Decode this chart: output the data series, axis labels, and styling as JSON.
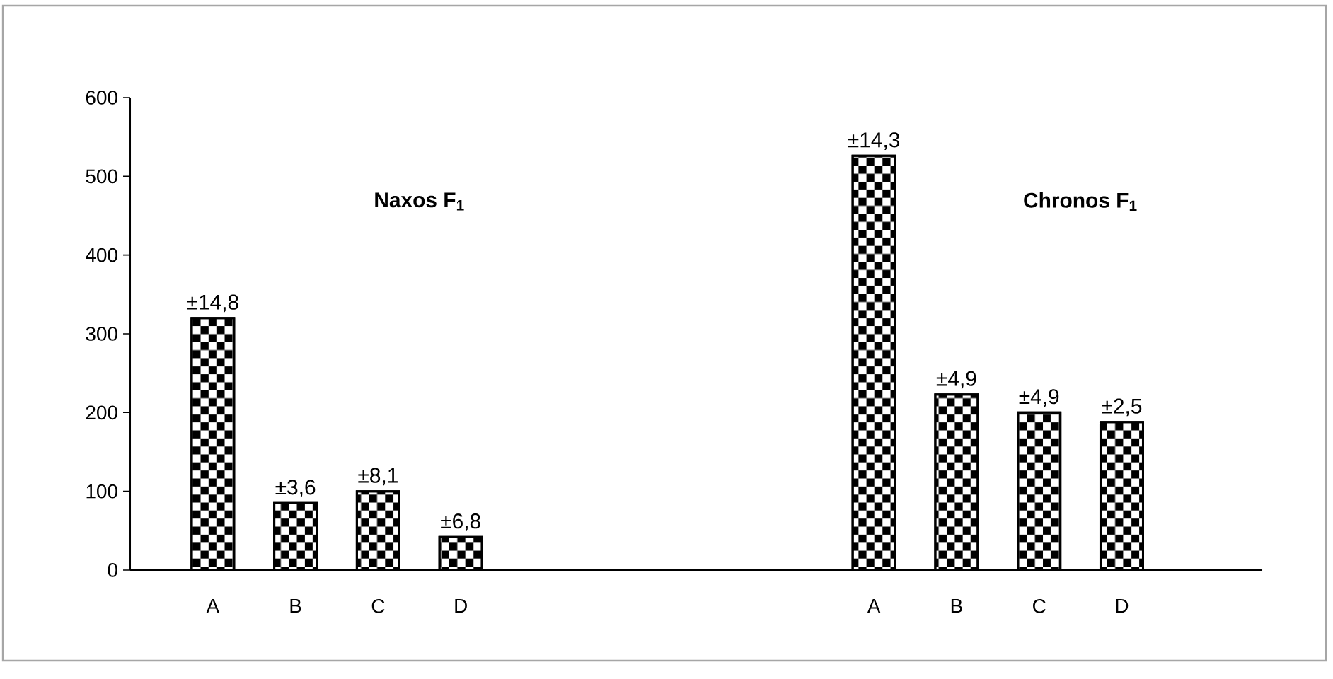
{
  "chart_data": {
    "type": "bar",
    "categories": [
      "A",
      "B",
      "C",
      "D",
      null,
      null,
      null,
      null,
      "A",
      "B",
      "C",
      "D"
    ],
    "values": [
      320,
      85,
      100,
      42,
      null,
      null,
      null,
      null,
      526,
      223,
      200,
      188
    ],
    "color": "#000000",
    "annotations": [
      "**Naxos F$_{1}$**",
      "**Chronos F$_{1}$**",
      "±14,8",
      "±3,6",
      "±8,1",
      "±6,8",
      "±14,3",
      "±4,9",
      "±4,9",
      "±2,5"
    ],
    "ylim": [
      0,
      600
    ],
    "yticks": [
      0,
      100,
      200,
      300,
      400,
      500,
      600
    ],
    "grid": false
  }
}
